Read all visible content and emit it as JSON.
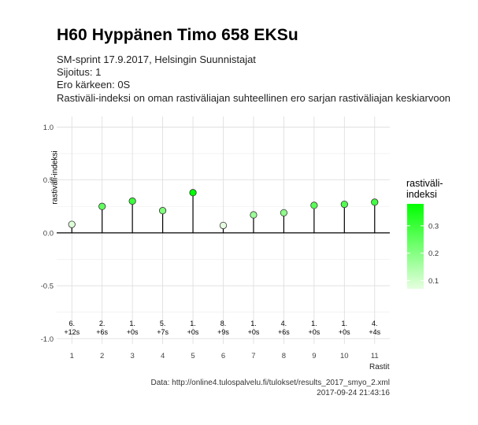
{
  "header": {
    "title": "H60 Hyppänen Timo 658 EKSu",
    "subtitle_lines": [
      "SM-sprint 17.9.2017, Helsingin Suunnistajat",
      "Sijoitus: 1",
      "Ero kärkeen: 0S",
      "Rastiväli-indeksi on oman rastiväliajan suhteellinen ero sarjan rastiväliajan keskiarvoon"
    ]
  },
  "caption": {
    "source": "Data: http://online4.tulospalvelu.fi/tulokset/results_2017_smyo_2.xml",
    "timestamp": "2017-09-24 21:43:16"
  },
  "legend": {
    "title": "rastiväli-\nindeksi",
    "ticks": [
      "0.3",
      "0.2",
      "0.1"
    ],
    "tick_values": [
      0.3,
      0.2,
      0.1
    ],
    "color_low": "#e6ffe0",
    "color_high": "#00ff00"
  },
  "chart_data": {
    "type": "lollipop",
    "xlabel": "Rastit",
    "ylabel": "rastiväli-indeksi",
    "ylim": [
      -1.05,
      1.1
    ],
    "yticks": [
      1.0,
      0.5,
      0.0,
      -0.5,
      -1.0
    ],
    "ytick_labels": [
      "1.0",
      "0.5",
      "0.0",
      "-0.5",
      "-1.0"
    ],
    "x": [
      1,
      2,
      3,
      4,
      5,
      6,
      7,
      8,
      9,
      10,
      11
    ],
    "x_labels": [
      "1",
      "2",
      "3",
      "4",
      "5",
      "6",
      "7",
      "8",
      "9",
      "10",
      "11"
    ],
    "values": [
      0.08,
      0.25,
      0.3,
      0.21,
      0.38,
      0.07,
      0.17,
      0.19,
      0.26,
      0.27,
      0.29
    ],
    "rank_labels": [
      "6.",
      "2.",
      "1.",
      "5.",
      "1.",
      "8.",
      "1.",
      "4.",
      "1.",
      "1.",
      "4."
    ],
    "diff_labels": [
      "+12s",
      "+6s",
      "+0s",
      "+7s",
      "+0s",
      "+9s",
      "+0s",
      "+6s",
      "+0s",
      "+0s",
      "+4s"
    ],
    "grid": true,
    "legend_position": "right"
  }
}
